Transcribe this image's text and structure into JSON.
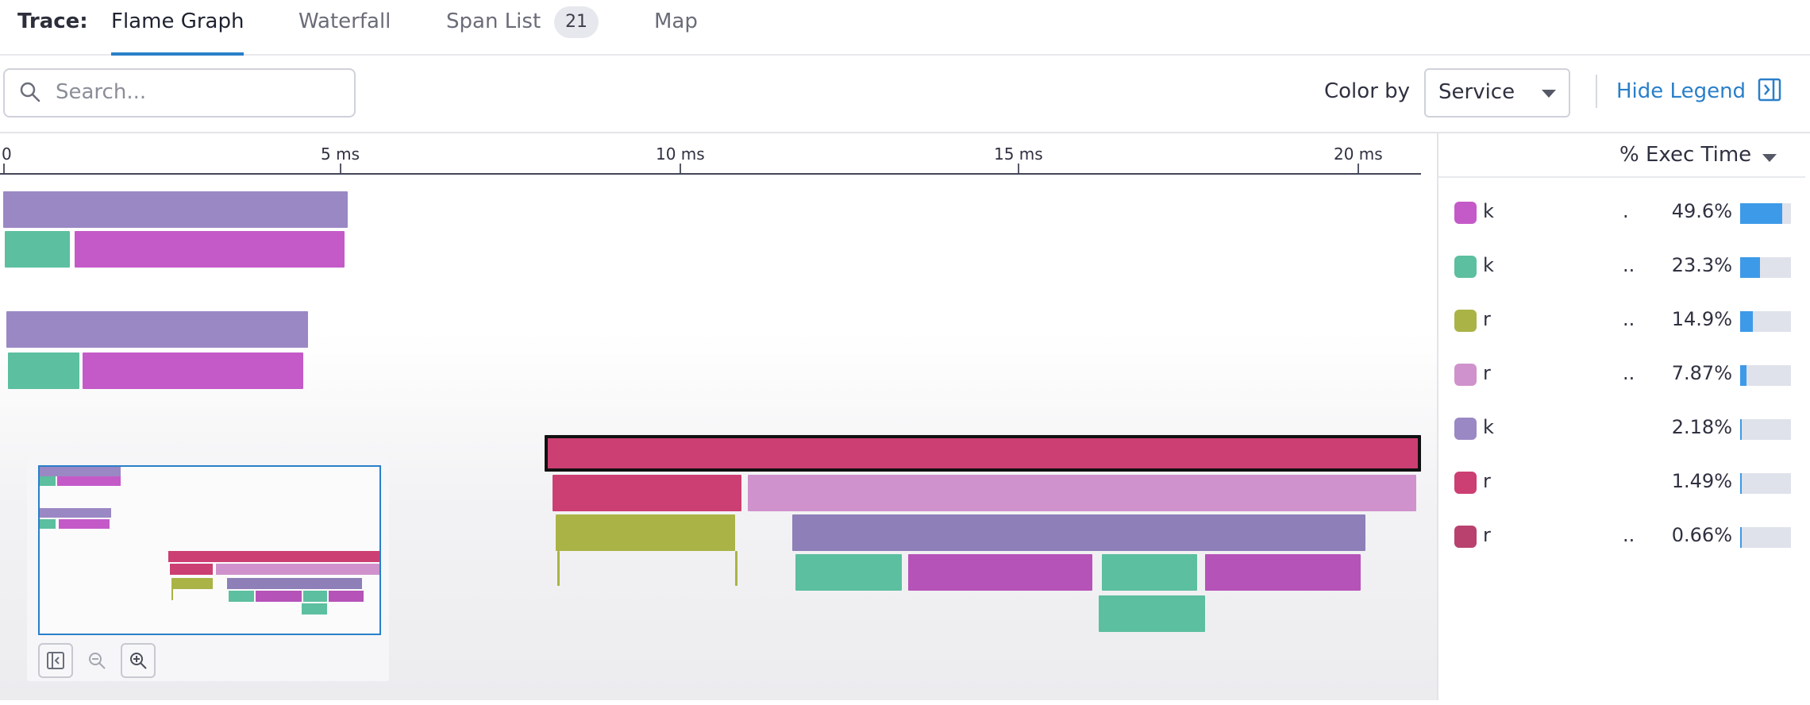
{
  "tabs": {
    "trace_label": "Trace:",
    "items": [
      {
        "label": "Flame Graph",
        "active": true
      },
      {
        "label": "Waterfall",
        "active": false
      },
      {
        "label": "Span List",
        "active": false,
        "badge": "21"
      },
      {
        "label": "Map",
        "active": false
      }
    ]
  },
  "toolbar": {
    "search_placeholder": "Search...",
    "color_by_label": "Color by",
    "color_by_value": "Service",
    "hide_legend_label": "Hide Legend"
  },
  "axis": {
    "ticks": [
      {
        "label": "0",
        "ms": 0
      },
      {
        "label": "5 ms",
        "ms": 5
      },
      {
        "label": "10 ms",
        "ms": 10
      },
      {
        "label": "15 ms",
        "ms": 15
      },
      {
        "label": "20 ms",
        "ms": 20
      }
    ]
  },
  "legend": {
    "header": "% Exec Time",
    "services": [
      {
        "name": "k",
        "dots": ".",
        "pct_label": "49.6%",
        "pct": 49.6,
        "color": "#c45ac8"
      },
      {
        "name": "k",
        "dots": "..",
        "pct_label": "23.3%",
        "pct": 23.3,
        "color": "#5cbf9f"
      },
      {
        "name": "r",
        "dots": "..",
        "pct_label": "14.9%",
        "pct": 14.9,
        "color": "#aab346"
      },
      {
        "name": "r",
        "dots": "..",
        "pct_label": "7.87%",
        "pct": 7.87,
        "color": "#cf92cc"
      },
      {
        "name": "k",
        "dots": "",
        "pct_label": "2.18%",
        "pct": 2.18,
        "color": "#9a88c4"
      },
      {
        "name": "r",
        "dots": "",
        "pct_label": "1.49%",
        "pct": 1.49,
        "color": "#cc3f72"
      },
      {
        "name": "r",
        "dots": "..",
        "pct_label": "0.66%",
        "pct": 0.66,
        "color": "#b8416e"
      }
    ]
  },
  "colors": {
    "accent": "#2a7fc9",
    "exec_bar": "#3d9ae8",
    "span_purple": "#9a88c4",
    "span_teal": "#5cbf9f",
    "span_magenta": "#c45ac8",
    "span_crimson": "#cc3f72",
    "span_olive": "#aab346",
    "span_lilac": "#cf92cc"
  },
  "icons": {
    "search": "search-icon",
    "select_caret": "chevron-down-icon",
    "legend_toggle": "collapse-panel-icon",
    "minimap_reset": "reset-view-icon",
    "minimap_zoom_out": "zoom-out-icon",
    "minimap_zoom_in": "zoom-in-icon"
  }
}
